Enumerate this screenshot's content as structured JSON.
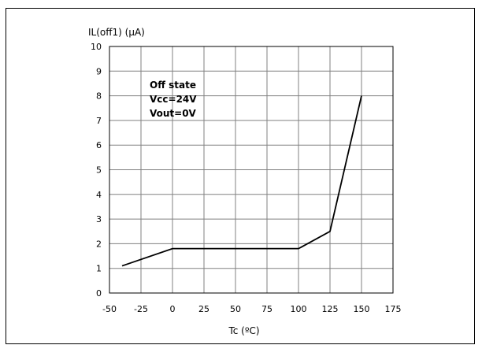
{
  "chart_data": {
    "type": "line",
    "ylabel": "IL(off1) (μA)",
    "xlabel": "Tc (ºC)",
    "xlim": [
      -50,
      175
    ],
    "ylim": [
      0,
      10
    ],
    "x_ticks": [
      "-50",
      "-25",
      "0",
      "25",
      "50",
      "75",
      "100",
      "125",
      "150",
      "175"
    ],
    "y_ticks": [
      "0",
      "1",
      "2",
      "3",
      "4",
      "5",
      "6",
      "7",
      "8",
      "9",
      "10"
    ],
    "grid": true,
    "annotation": [
      "Off state",
      "Vcc=24V",
      "Vout=0V"
    ],
    "series": [
      {
        "x": [
          -40,
          0,
          100,
          125,
          150
        ],
        "y": [
          1.1,
          1.8,
          1.8,
          2.5,
          8.0
        ]
      }
    ],
    "colors": {
      "line": "#000000",
      "grid": "#808080"
    }
  }
}
